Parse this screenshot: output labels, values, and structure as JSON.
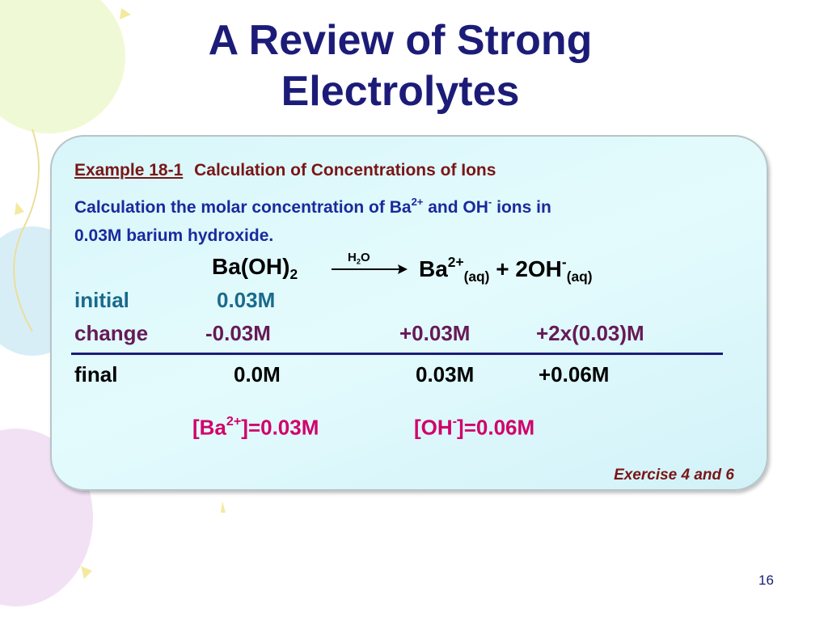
{
  "title": {
    "lines": [
      "A Review of Strong",
      "Electrolytes"
    ]
  },
  "example": {
    "label": "Example 18-1",
    "heading": "Calculation of Concentrations of Ions",
    "problem": [
      "Calculation the molar concentration of Ba",
      "2+",
      "and OH",
      "-",
      "ions in",
      "0.03M barium hydroxide."
    ]
  },
  "equation": {
    "reactant": "Ba(OH)",
    "reactant_sub": "2",
    "arrow_label": [
      "H",
      "2",
      "O"
    ],
    "product1": "Ba",
    "product1_sup": "2+",
    "product1_state": "(aq)",
    "product2": "+ 2OH",
    "product2_sup": "-",
    "product2_state": "(aq)"
  },
  "table": {
    "rows": [
      {
        "label": "initial",
        "values": [
          "0.03M"
        ]
      },
      {
        "label": "change",
        "values": [
          "-0.03M",
          "+0.03M",
          "+2x(0.03)M"
        ]
      },
      {
        "label": "final",
        "values": [
          "0.0M",
          "0.03M",
          "+0.06M"
        ]
      }
    ]
  },
  "results": [
    {
      "text": "[Ba",
      "sup": "2+",
      "rest": "]=0.03M"
    },
    {
      "text": "[OH",
      "sup": "-",
      "rest": "]=0.06M"
    }
  ],
  "exercise": "Exercise 4 and 6",
  "page_number": "16"
}
